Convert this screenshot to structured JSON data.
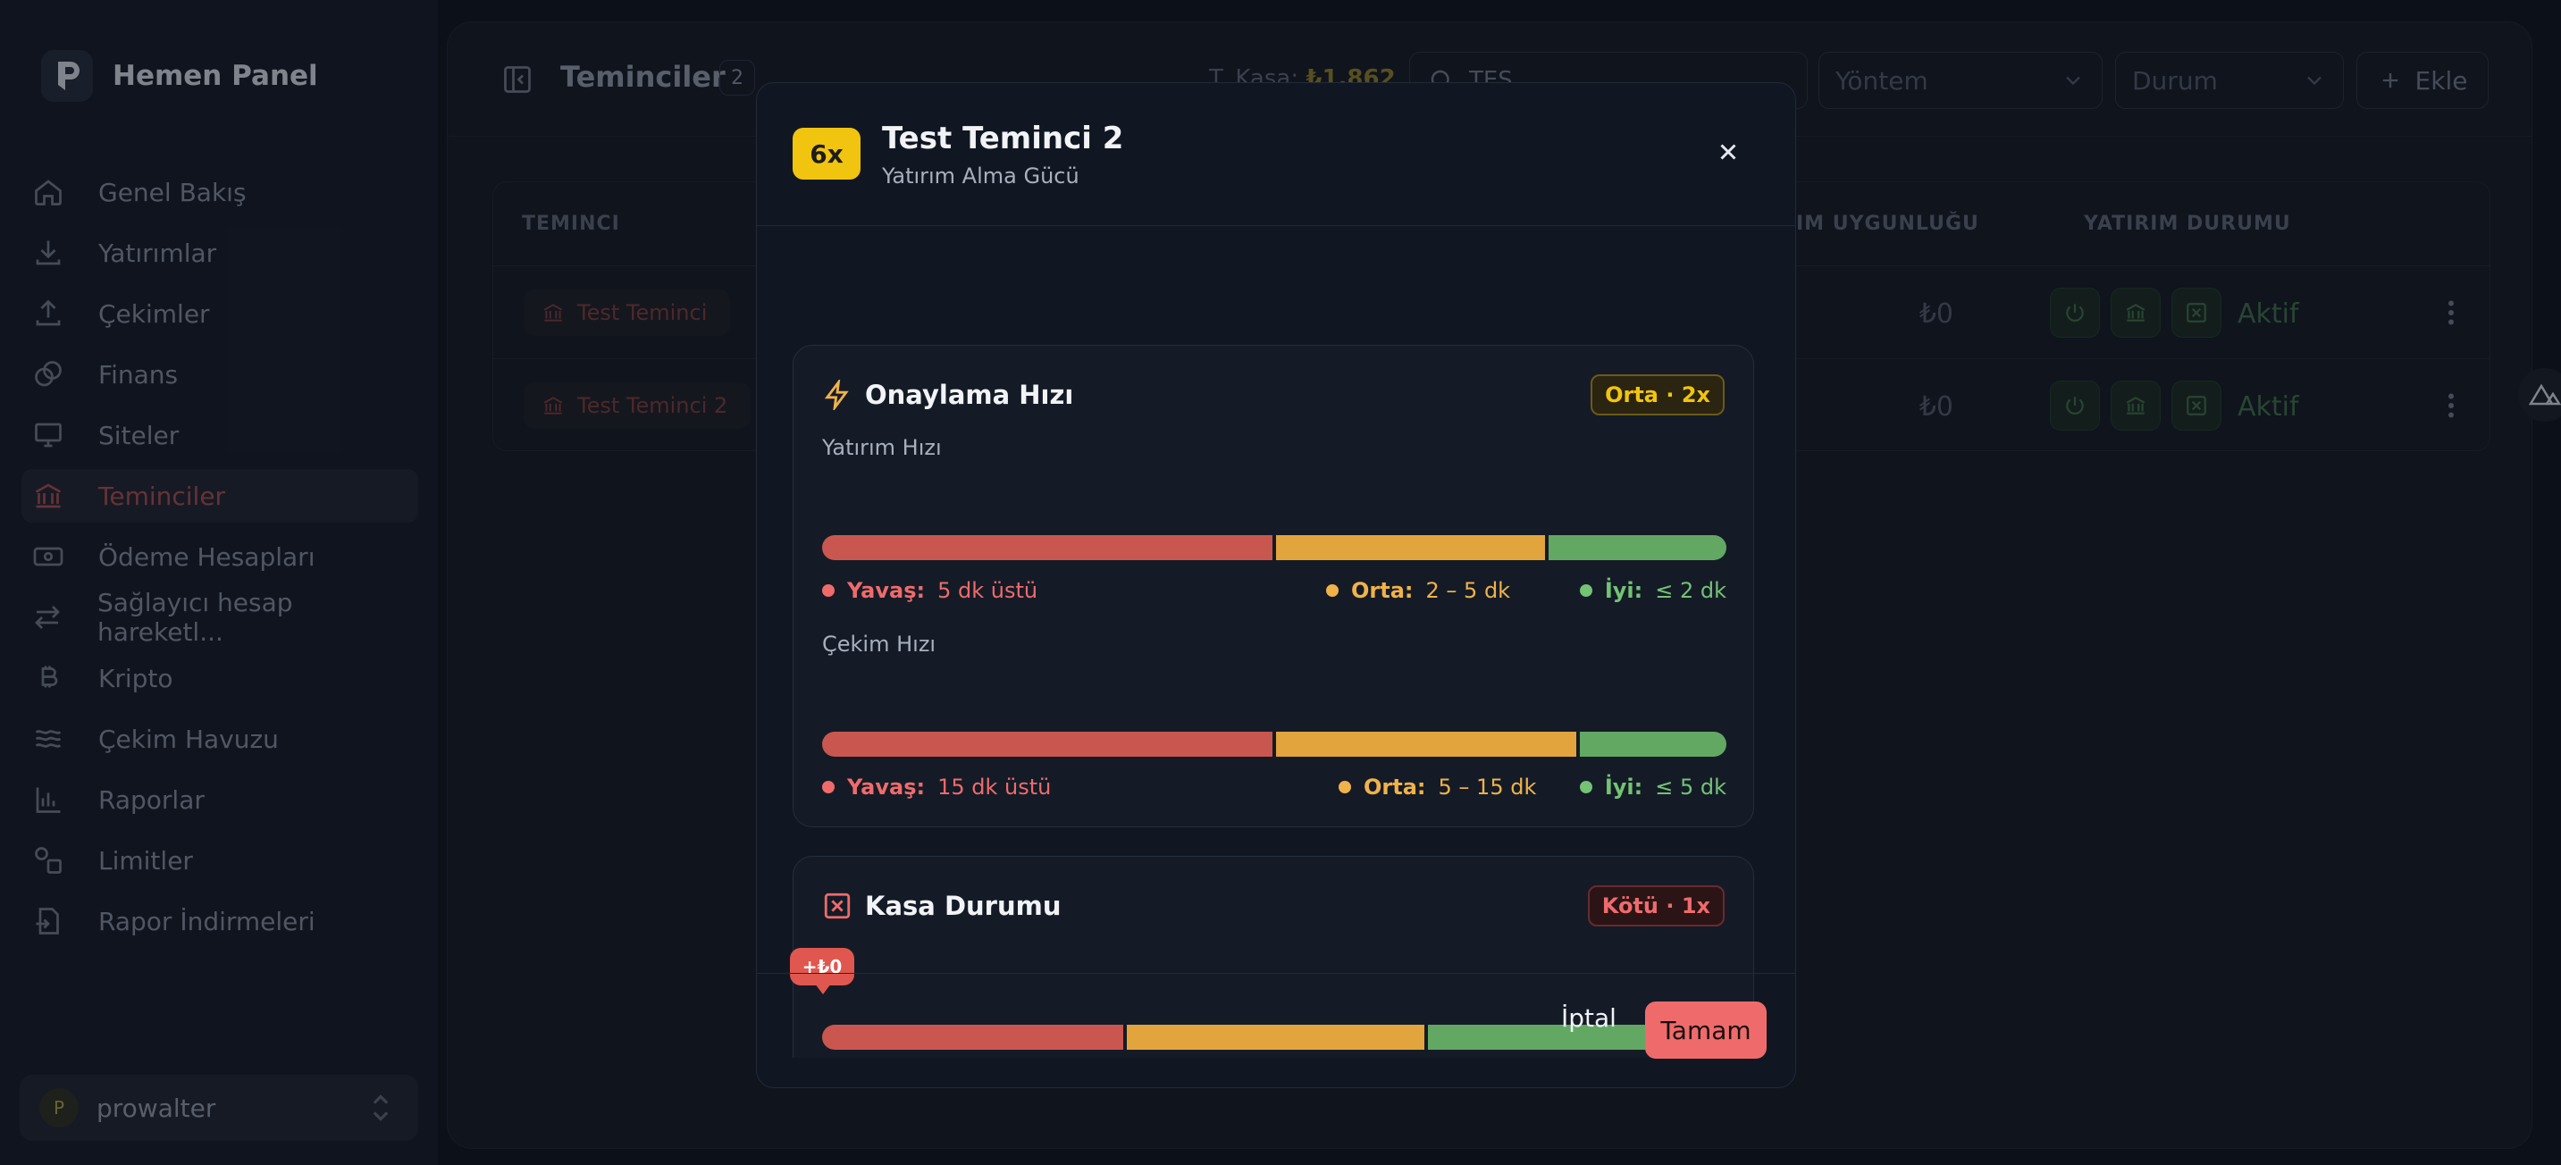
{
  "brand": {
    "name": "Hemen Panel"
  },
  "sidebar": {
    "items": [
      {
        "label": "Genel Bakış",
        "icon": "home-icon"
      },
      {
        "label": "Yatırımlar",
        "icon": "download-icon"
      },
      {
        "label": "Çekimler",
        "icon": "upload-icon"
      },
      {
        "label": "Finans",
        "icon": "coins-icon"
      },
      {
        "label": "Siteler",
        "icon": "monitor-icon"
      },
      {
        "label": "Teminciler",
        "icon": "bank-icon",
        "active": true
      },
      {
        "label": "Ödeme Hesapları",
        "icon": "banknote-icon"
      },
      {
        "label": "Sağlayıcı hesap hareketl...",
        "icon": "arrows-icon"
      },
      {
        "label": "Kripto",
        "icon": "bitcoin-icon"
      },
      {
        "label": "Çekim Havuzu",
        "icon": "waves-icon"
      },
      {
        "label": "Raporlar",
        "icon": "chart-icon"
      },
      {
        "label": "Limitler",
        "icon": "shapes-icon"
      },
      {
        "label": "Rapor İndirmeleri",
        "icon": "file-download-icon"
      }
    ],
    "user": {
      "initial": "P",
      "name": "prowalter"
    }
  },
  "topbar": {
    "title": "Teminciler",
    "count": "2",
    "kasa_label": "T. Kasa:",
    "kasa_value": "₺1,862",
    "search_value": "TES",
    "method_placeholder": "Yöntem",
    "status_placeholder": "Durum",
    "add_label": "Ekle"
  },
  "table": {
    "headers": [
      "TEMINCI",
      "IM UYGUNLUĞU",
      "YATIRIM DURUMU"
    ],
    "rows": [
      {
        "provider": "Test Teminci",
        "amount": "₺0",
        "status": "Aktif"
      },
      {
        "provider": "Test Teminci 2",
        "amount": "₺0",
        "status": "Aktif"
      }
    ]
  },
  "modal": {
    "multiplier": "6x",
    "title": "Test Teminci 2",
    "subtitle": "Yatırım Alma Gücü",
    "cards": [
      {
        "title": "Onaylama Hızı",
        "badge": "Orta · 2x",
        "sections": [
          {
            "label": "Yatırım Hızı",
            "legend": [
              {
                "key": "Yavaş:",
                "value": "5 dk üstü"
              },
              {
                "key": "Orta:",
                "value": "2 – 5 dk"
              },
              {
                "key": "İyi:",
                "value": "≤ 2 dk"
              }
            ]
          },
          {
            "label": "Çekim Hızı",
            "legend": [
              {
                "key": "Yavaş:",
                "value": "15 dk üstü"
              },
              {
                "key": "Orta:",
                "value": "5 – 15 dk"
              },
              {
                "key": "İyi:",
                "value": "≤ 5 dk"
              }
            ]
          }
        ]
      },
      {
        "title": "Kasa Durumu",
        "badge": "Kötü · 1x",
        "marker": "+₺0"
      }
    ],
    "cancel_label": "İptal",
    "ok_label": "Tamam"
  },
  "colors": {
    "accent_red": "#ef6b6b",
    "badge_yellow": "#f1c40f",
    "seg_red": "#c9574f",
    "seg_orange": "#e2a43c",
    "seg_green": "#62a862"
  }
}
